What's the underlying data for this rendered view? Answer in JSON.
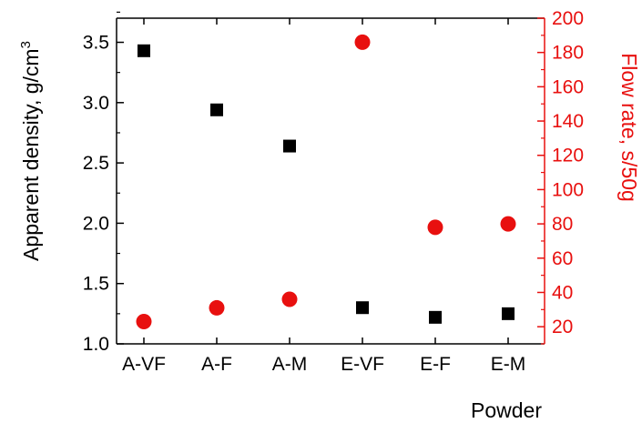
{
  "chart_data": {
    "type": "scatter",
    "categories": [
      "A-VF",
      "A-F",
      "A-M",
      "E-VF",
      "E-F",
      "E-M"
    ],
    "xlabel": "Powder",
    "y_left": {
      "label_main": "Apparent density, g/cm",
      "label_sup": "3",
      "range": [
        1.0,
        3.7
      ],
      "ticks": [
        "1.0",
        "1.5",
        "2.0",
        "2.5",
        "3.0",
        "3.5"
      ],
      "color": "#000000"
    },
    "y_right": {
      "label": "Flow rate, s/50g",
      "range": [
        10,
        200
      ],
      "ticks": [
        "20",
        "40",
        "60",
        "80",
        "100",
        "120",
        "140",
        "160",
        "180",
        "200"
      ],
      "color": "#e8100f"
    },
    "series": [
      {
        "axis": "left",
        "marker": "square",
        "color": "#000000",
        "values": [
          3.43,
          2.94,
          2.64,
          1.3,
          1.22,
          1.25
        ]
      },
      {
        "axis": "right",
        "marker": "circle",
        "color": "#e8100f",
        "values": [
          23,
          31,
          36,
          186,
          78,
          80
        ]
      }
    ],
    "grid": false
  }
}
